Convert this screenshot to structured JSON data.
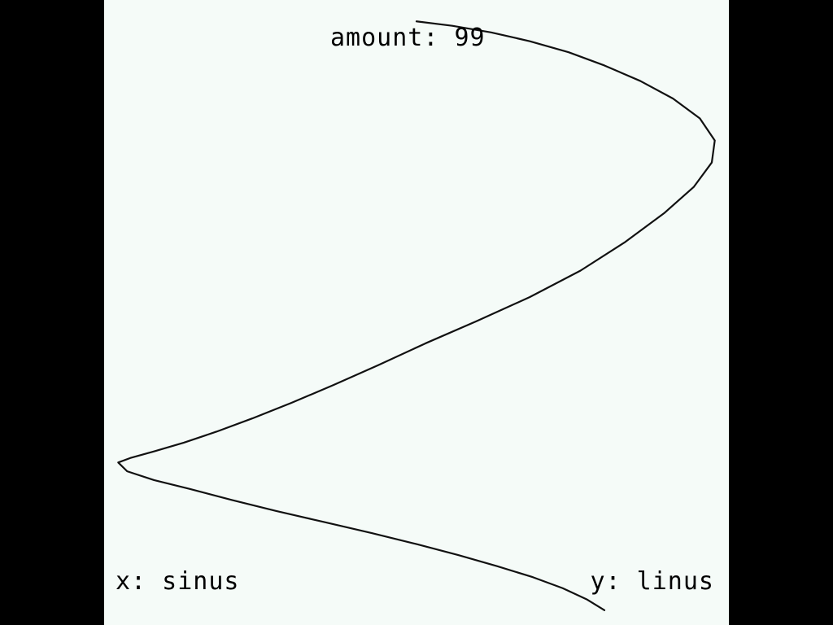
{
  "display": {
    "amount_text": "amount: 99",
    "x_text": "x: sinus",
    "y_text": "y: linus"
  },
  "colors": {
    "outer_background": "#000000",
    "canvas_background": "#F5FBF8",
    "curve": "#111111",
    "text": "#000000"
  },
  "chart_data": {
    "type": "line",
    "series": [
      {
        "values": [
          [
            0.0,
            1.0
          ],
          [
            0.12,
            0.98
          ],
          [
            0.25,
            0.95
          ],
          [
            0.38,
            0.91
          ],
          [
            0.51,
            0.86
          ],
          [
            0.63,
            0.8
          ],
          [
            0.75,
            0.73
          ],
          [
            0.86,
            0.65
          ],
          [
            0.95,
            0.56
          ],
          [
            1.0,
            0.46
          ],
          [
            0.99,
            0.36
          ],
          [
            0.93,
            0.25
          ],
          [
            0.83,
            0.13
          ],
          [
            0.7,
            0.0
          ],
          [
            0.55,
            -0.13
          ],
          [
            0.38,
            -0.25
          ],
          [
            0.2,
            -0.36
          ],
          [
            0.03,
            -0.46
          ],
          [
            -0.13,
            -0.56
          ],
          [
            -0.28,
            -0.65
          ],
          [
            -0.42,
            -0.73
          ],
          [
            -0.55,
            -0.8
          ],
          [
            -0.67,
            -0.86
          ],
          [
            -0.78,
            -0.91
          ],
          [
            -0.88,
            -0.95
          ],
          [
            -0.96,
            -0.98
          ],
          [
            -1.0,
            -1.0
          ],
          [
            -0.97,
            -1.04
          ],
          [
            -0.88,
            -1.08
          ],
          [
            -0.76,
            -1.12
          ],
          [
            -0.62,
            -1.17
          ],
          [
            -0.47,
            -1.22
          ],
          [
            -0.31,
            -1.27
          ],
          [
            -0.15,
            -1.32
          ],
          [
            0.0,
            -1.37
          ],
          [
            0.14,
            -1.42
          ],
          [
            0.27,
            -1.47
          ],
          [
            0.39,
            -1.52
          ],
          [
            0.49,
            -1.57
          ],
          [
            0.57,
            -1.62
          ],
          [
            0.63,
            -1.67
          ]
        ]
      }
    ],
    "xlim": [
      -1.02,
      1.02
    ],
    "ylim": [
      -1.7,
      1.06
    ],
    "grid": false,
    "legend": "none"
  }
}
